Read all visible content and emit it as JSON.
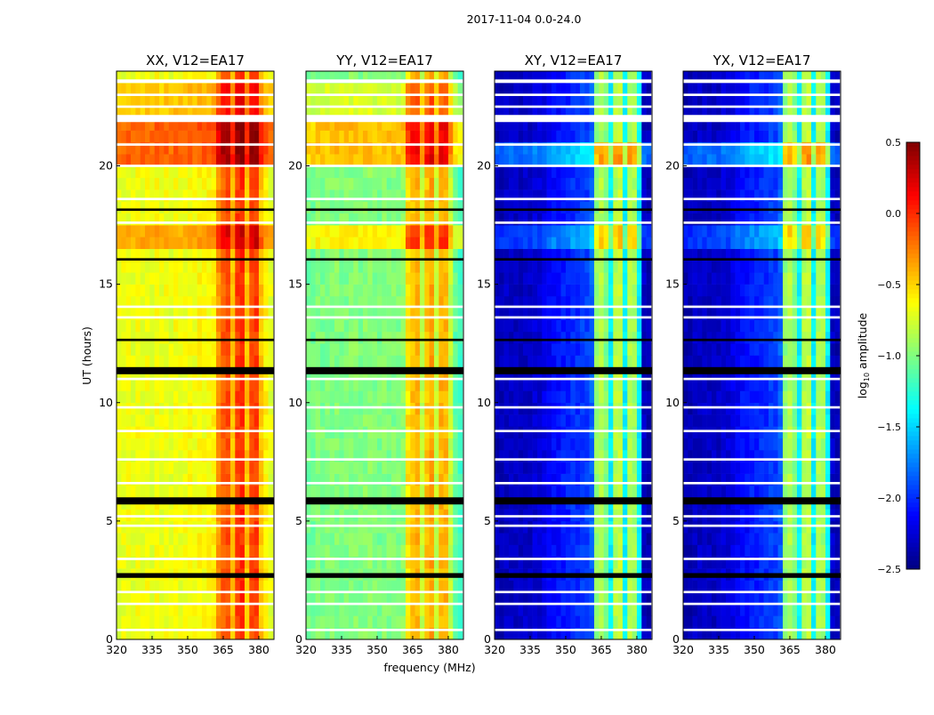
{
  "chart_data": {
    "type": "heatmap",
    "title": "2017-11-04 0.0-24.0",
    "xlabel": "frequency (MHz)",
    "ylabel": "UT (hours)",
    "xlim": [
      320,
      386.4
    ],
    "ylim": [
      0,
      24
    ],
    "xticks": [
      "320",
      "335",
      "350",
      "365",
      "380"
    ],
    "xtick_values": [
      320,
      335,
      350,
      365,
      380
    ],
    "yticks": [
      "0",
      "5",
      "10",
      "15",
      "20"
    ],
    "ytick_values": [
      0,
      5,
      10,
      15,
      20
    ],
    "colorbar": {
      "label": "log10 amplitude",
      "label_main": "log",
      "label_sub": "10",
      "label_rest": " amplitude",
      "colormap": "jet",
      "range": [
        -2.5,
        0.5
      ],
      "ticks": [
        "0.5",
        "0.0",
        "−0.5",
        "−1.0",
        "−1.5",
        "−2.0",
        "−2.5"
      ],
      "tick_values": [
        0.5,
        0.0,
        -0.5,
        -1.0,
        -1.5,
        -2.0,
        -2.5
      ]
    },
    "freq_bins_MHz": {
      "start": 320,
      "step": 2,
      "count": 33
    },
    "time_bins_hours": {
      "start": 0,
      "step": 0.5,
      "count": 48
    },
    "flagged_white_hours": [
      [
        23.5,
        23.65
      ],
      [
        22.95,
        23.05
      ],
      [
        22.45,
        22.55
      ],
      [
        21.85,
        22.15
      ],
      [
        20.85,
        20.95
      ],
      [
        19.95,
        20.05
      ],
      [
        18.55,
        18.65
      ],
      [
        17.55,
        17.65
      ],
      [
        14.0,
        14.1
      ],
      [
        13.55,
        13.65
      ],
      [
        10.95,
        11.05
      ],
      [
        9.75,
        9.85
      ],
      [
        8.75,
        8.85
      ],
      [
        7.55,
        7.65
      ],
      [
        6.55,
        6.65
      ],
      [
        5.15,
        5.25
      ],
      [
        4.75,
        4.85
      ],
      [
        3.35,
        3.45
      ],
      [
        1.95,
        2.05
      ],
      [
        1.45,
        1.55
      ],
      [
        0.35,
        0.45
      ]
    ],
    "flagged_black_hours": [
      [
        11.2,
        11.5
      ],
      [
        5.7,
        6.0
      ],
      [
        2.6,
        2.8
      ],
      [
        18.1,
        18.2
      ],
      [
        16.0,
        16.1
      ],
      [
        12.6,
        12.7
      ]
    ],
    "panels": [
      {
        "title": "XX, V12=EA17",
        "freq_profile": [
          -0.7,
          -0.68,
          -0.66,
          -0.7,
          -0.65,
          -0.68,
          -0.66,
          -0.7,
          -0.64,
          -0.68,
          -0.66,
          -0.7,
          -0.65,
          -0.68,
          -0.66,
          -0.64,
          -0.66,
          -0.62,
          -0.64,
          -0.62,
          -0.6,
          -0.3,
          -0.15,
          -0.1,
          -0.45,
          -0.05,
          0.0,
          -0.45,
          -0.1,
          -0.05,
          -0.45,
          -0.6,
          -0.7
        ],
        "time_offsets": [
          {
            "from": 20.2,
            "to": 21.9,
            "offset": 0.5
          },
          {
            "from": 16.3,
            "to": 17.4,
            "offset": 0.3
          },
          {
            "from": 22.2,
            "to": 23.4,
            "offset": 0.2
          }
        ]
      },
      {
        "title": "YY, V12=EA17",
        "freq_profile": [
          -1.05,
          -1.05,
          -1.0,
          -1.02,
          -1.0,
          -1.0,
          -0.98,
          -1.0,
          -1.0,
          -0.98,
          -0.98,
          -1.0,
          -0.98,
          -0.96,
          -1.0,
          -1.02,
          -0.98,
          -1.0,
          -1.0,
          -1.0,
          -0.95,
          -0.55,
          -0.45,
          -0.4,
          -0.8,
          -0.45,
          -0.35,
          -0.8,
          -0.4,
          -0.4,
          -0.8,
          -1.1,
          -1.2
        ],
        "time_offsets": [
          {
            "from": 20.2,
            "to": 21.9,
            "offset": 0.55
          },
          {
            "from": 16.3,
            "to": 17.4,
            "offset": 0.4
          },
          {
            "from": 22.2,
            "to": 23.4,
            "offset": 0.25
          }
        ]
      },
      {
        "title": "XY, V12=EA17",
        "freq_profile": [
          -2.35,
          -2.35,
          -2.3,
          -2.3,
          -2.3,
          -2.3,
          -2.3,
          -2.3,
          -2.25,
          -2.25,
          -2.2,
          -2.15,
          -2.1,
          -2.1,
          -2.05,
          -2.05,
          -2.0,
          -2.0,
          -1.95,
          -1.95,
          -1.85,
          -0.95,
          -0.85,
          -1.0,
          -1.4,
          -0.85,
          -0.8,
          -1.4,
          -0.85,
          -0.9,
          -1.4,
          -2.3,
          -2.35
        ],
        "time_offsets": [
          {
            "from": 20.2,
            "to": 21.0,
            "offset": 0.5
          },
          {
            "from": 16.3,
            "to": 17.4,
            "offset": 0.35
          }
        ]
      },
      {
        "title": "YX, V12=EA17",
        "freq_profile": [
          -2.35,
          -2.35,
          -2.3,
          -2.3,
          -2.3,
          -2.3,
          -2.3,
          -2.3,
          -2.25,
          -2.25,
          -2.2,
          -2.15,
          -2.1,
          -2.1,
          -2.05,
          -2.05,
          -2.0,
          -2.0,
          -1.95,
          -1.95,
          -1.85,
          -0.95,
          -0.85,
          -1.0,
          -1.4,
          -0.85,
          -0.8,
          -1.4,
          -0.85,
          -0.9,
          -1.4,
          -2.3,
          -2.35
        ],
        "time_offsets": [
          {
            "from": 20.2,
            "to": 21.0,
            "offset": 0.5
          },
          {
            "from": 16.3,
            "to": 17.4,
            "offset": 0.35
          }
        ]
      }
    ]
  }
}
